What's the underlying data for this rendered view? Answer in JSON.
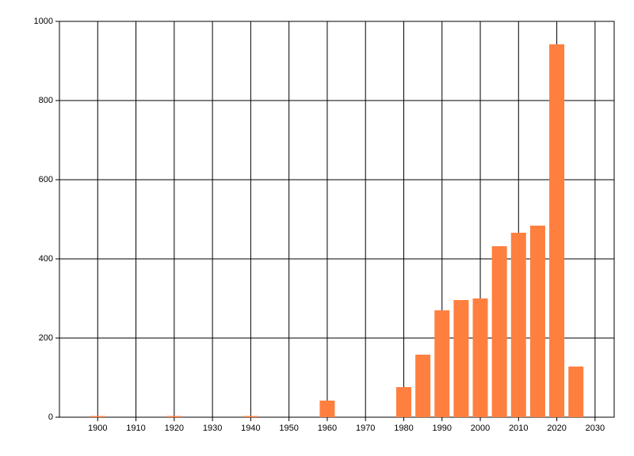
{
  "chart_data": {
    "type": "bar",
    "x": [
      1900,
      1920,
      1940,
      1960,
      1980,
      1985,
      1990,
      1995,
      2000,
      2005,
      2010,
      2015,
      2020,
      2025
    ],
    "values": [
      3,
      3,
      3,
      42,
      76,
      158,
      270,
      296,
      300,
      432,
      466,
      484,
      942,
      128
    ],
    "color": "#ff7f3f",
    "xlim": [
      1890,
      2035
    ],
    "xticks": [
      1900,
      1910,
      1920,
      1930,
      1940,
      1950,
      1960,
      1970,
      1980,
      1990,
      2000,
      2010,
      2020,
      2030
    ],
    "ylim": [
      0,
      1000
    ],
    "yticks": [
      0,
      200,
      400,
      600,
      800,
      1000
    ],
    "grid": true
  }
}
